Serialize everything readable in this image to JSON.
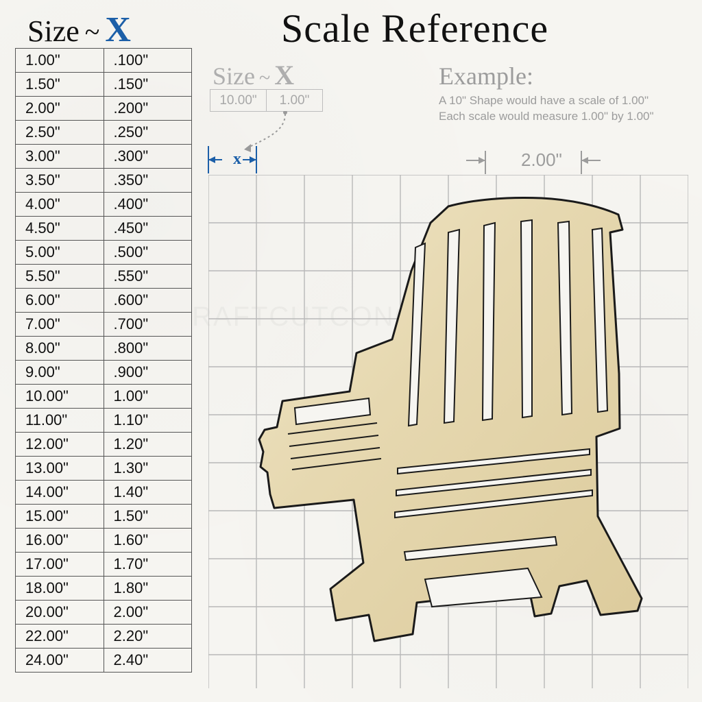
{
  "title": "Scale Reference",
  "table_header": {
    "size_label": "Size",
    "dash": "~",
    "x_label": "X"
  },
  "accent_color": "#1c5fa8",
  "text_color": "#111111",
  "muted_color": "#a0a0a0",
  "grid_color": "#b8b8b8",
  "background_color": "#f6f5f1",
  "scale_table": {
    "rows": [
      [
        "1.00\"",
        ".100\""
      ],
      [
        "1.50\"",
        ".150\""
      ],
      [
        "2.00\"",
        ".200\""
      ],
      [
        "2.50\"",
        ".250\""
      ],
      [
        "3.00\"",
        ".300\""
      ],
      [
        "3.50\"",
        ".350\""
      ],
      [
        "4.00\"",
        ".400\""
      ],
      [
        "4.50\"",
        ".450\""
      ],
      [
        "5.00\"",
        ".500\""
      ],
      [
        "5.50\"",
        ".550\""
      ],
      [
        "6.00\"",
        ".600\""
      ],
      [
        "7.00\"",
        ".700\""
      ],
      [
        "8.00\"",
        ".800\""
      ],
      [
        "9.00\"",
        ".900\""
      ],
      [
        "10.00\"",
        "1.00\""
      ],
      [
        "11.00\"",
        "1.10\""
      ],
      [
        "12.00\"",
        "1.20\""
      ],
      [
        "13.00\"",
        "1.30\""
      ],
      [
        "14.00\"",
        "1.40\""
      ],
      [
        "15.00\"",
        "1.50\""
      ],
      [
        "16.00\"",
        "1.60\""
      ],
      [
        "17.00\"",
        "1.70\""
      ],
      [
        "18.00\"",
        "1.80\""
      ],
      [
        "20.00\"",
        "2.00\""
      ],
      [
        "22.00\"",
        "2.20\""
      ],
      [
        "24.00\"",
        "2.40\""
      ]
    ]
  },
  "mini_header": {
    "size_label": "Size",
    "dash": "~",
    "x_label": "X"
  },
  "mini_table": {
    "col1": "10.00\"",
    "col2": "1.00\""
  },
  "x_marker_label": "x",
  "example": {
    "title": "Example:",
    "line1": "A 10\" Shape would have a scale of 1.00\"",
    "line2": "Each scale would measure 1.00\" by 1.00\""
  },
  "dimension_label": "2.00\"",
  "grid": {
    "cols": 10,
    "rows_full": 10,
    "rows_extra_half": true,
    "cell": 70,
    "stroke": "#b8b8b8"
  },
  "chair": {
    "fill": "#e8dbb8",
    "fill2": "#ded0a8",
    "stroke": "#1a1a1a",
    "stroke_width": 3
  },
  "watermark": "RAFTCUTCONC"
}
